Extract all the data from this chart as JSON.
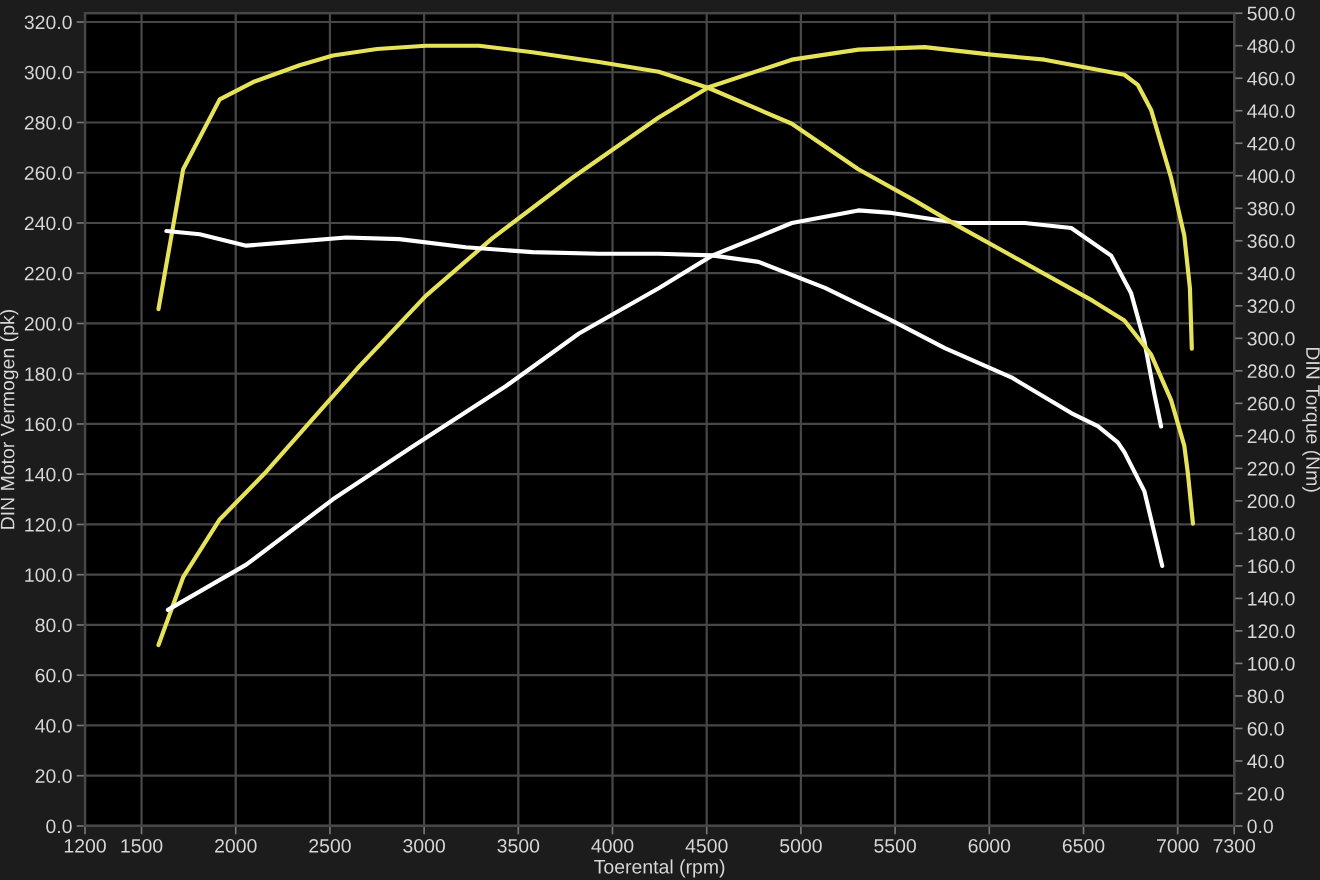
{
  "chart_data": {
    "type": "line",
    "xlabel": "Toerental (rpm)",
    "ylabel": "DIN Motor Vermogen (pk)",
    "y2label": "DIN Torque (Nm)",
    "xlim": [
      1200,
      7300
    ],
    "xticks": [
      1200,
      1500,
      2000,
      2500,
      3000,
      3500,
      4000,
      4500,
      5000,
      5500,
      6000,
      6500,
      7000,
      7300
    ],
    "ylim": [
      0,
      323.5
    ],
    "yticks": [
      {
        "value": 0,
        "label": "0.0"
      },
      {
        "value": 20,
        "label": "20.0"
      },
      {
        "value": 40,
        "label": "40.0"
      },
      {
        "value": 60,
        "label": "60.0"
      },
      {
        "value": 80,
        "label": "80.0"
      },
      {
        "value": 100,
        "label": "100.0"
      },
      {
        "value": 120,
        "label": "120.0"
      },
      {
        "value": 140,
        "label": "140.0"
      },
      {
        "value": 160,
        "label": "160.0"
      },
      {
        "value": 180,
        "label": "180.0"
      },
      {
        "value": 200,
        "label": "200.0"
      },
      {
        "value": 220,
        "label": "220.0"
      },
      {
        "value": 240,
        "label": "240.0"
      },
      {
        "value": 260,
        "label": "260.0"
      },
      {
        "value": 280,
        "label": "280.0"
      },
      {
        "value": 300,
        "label": "300.0"
      },
      {
        "value": 320,
        "label": "320.0"
      }
    ],
    "y2lim": [
      0,
      500
    ],
    "y2ticks": [
      {
        "value": 0,
        "label": "0.0"
      },
      {
        "value": 20,
        "label": "20.0"
      },
      {
        "value": 40,
        "label": "40.0"
      },
      {
        "value": 60,
        "label": "60.0"
      },
      {
        "value": 80,
        "label": "80.0"
      },
      {
        "value": 100,
        "label": "100.0"
      },
      {
        "value": 120,
        "label": "120.0"
      },
      {
        "value": 140,
        "label": "140.0"
      },
      {
        "value": 160,
        "label": "160.0"
      },
      {
        "value": 180,
        "label": "180.0"
      },
      {
        "value": 200,
        "label": "200.0"
      },
      {
        "value": 220,
        "label": "220.0"
      },
      {
        "value": 240,
        "label": "240.0"
      },
      {
        "value": 260,
        "label": "260.0"
      },
      {
        "value": 280,
        "label": "280.0"
      },
      {
        "value": 300,
        "label": "300.0"
      },
      {
        "value": 320,
        "label": "320.0"
      },
      {
        "value": 340,
        "label": "340.0"
      },
      {
        "value": 360,
        "label": "360.0"
      },
      {
        "value": 380,
        "label": "380.0"
      },
      {
        "value": 400,
        "label": "400.0"
      },
      {
        "value": 420,
        "label": "420.0"
      },
      {
        "value": 440,
        "label": "440.0"
      },
      {
        "value": 460,
        "label": "460.0"
      },
      {
        "value": 480,
        "label": "480.0"
      },
      {
        "value": 500,
        "label": "500.0"
      }
    ],
    "grid": true,
    "series": [
      {
        "axis": "y",
        "color": "#e6e35a",
        "x": [
          1590,
          1721,
          1915,
          2162,
          2374,
          2657,
          3009,
          3363,
          3787,
          4245,
          4510,
          4952,
          5305,
          5658,
          6011,
          6293,
          6505,
          6717,
          6788,
          6859,
          6965,
          7035,
          7065,
          7075
        ],
        "values": [
          72,
          99,
          122,
          141,
          159,
          183,
          211,
          234,
          258,
          282,
          294,
          305,
          309,
          310,
          307,
          305,
          302,
          299,
          295,
          285,
          258,
          235,
          214,
          190
        ]
      },
      {
        "axis": "y2",
        "color": "#e6e35a",
        "x": [
          1590,
          1721,
          1915,
          2100,
          2339,
          2516,
          2750,
          3009,
          3292,
          3575,
          3928,
          4245,
          4510,
          4952,
          5305,
          5600,
          5835,
          6100,
          6364,
          6550,
          6717,
          6859,
          6965,
          7035,
          7055,
          7081
        ],
        "values": [
          318,
          404,
          447,
          458,
          468,
          474,
          478,
          480,
          480,
          476,
          470,
          464,
          454,
          432,
          404,
          385,
          369,
          352,
          335,
          323,
          311,
          290,
          262,
          234,
          216,
          186
        ]
      },
      {
        "axis": "y",
        "color": "#ffffff",
        "x": [
          1640,
          2056,
          2516,
          2939,
          3433,
          3822,
          4245,
          4528,
          4952,
          5305,
          5481,
          5835,
          6188,
          6435,
          6647,
          6753,
          6823,
          6876,
          6912
        ],
        "values": [
          86,
          104,
          130,
          151,
          175,
          196,
          214,
          227,
          240,
          245,
          244,
          240,
          240,
          238,
          227,
          212,
          193,
          172,
          159
        ]
      },
      {
        "axis": "y2",
        "color": "#ffffff",
        "x": [
          1632,
          1809,
          2056,
          2268,
          2586,
          2868,
          3221,
          3575,
          3928,
          4245,
          4528,
          4775,
          5128,
          5481,
          5764,
          6117,
          6435,
          6576,
          6682,
          6717,
          6823,
          6918
        ],
        "values": [
          366,
          364,
          357,
          359,
          362,
          361,
          356,
          353,
          352,
          352,
          351,
          347,
          331,
          311,
          294,
          276,
          254,
          246,
          236,
          230,
          206,
          160
        ]
      }
    ]
  }
}
